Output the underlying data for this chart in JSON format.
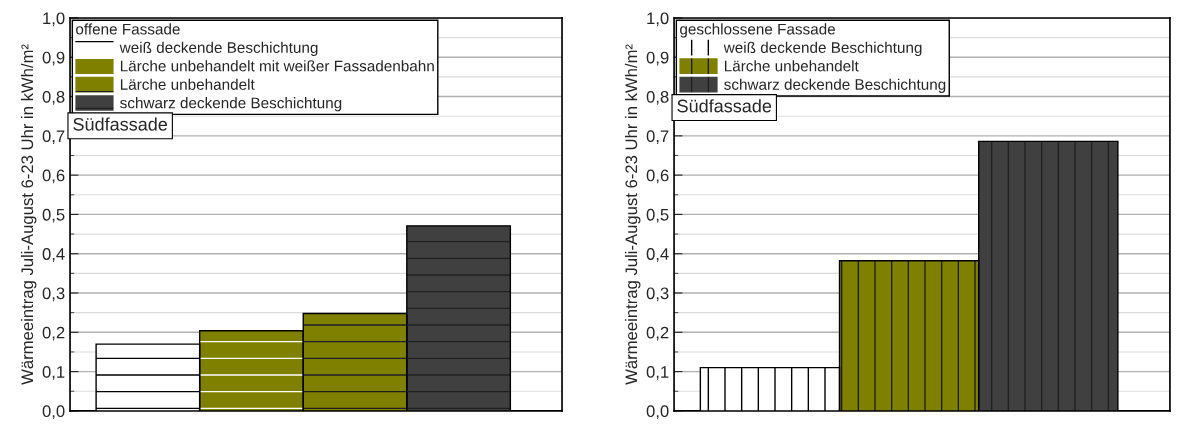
{
  "chart_data": [
    {
      "type": "bar",
      "ylabel": "Wärmeeintrag Juli-August 6-23 Uhr in kWh/m²",
      "legend_title": "offene Fassade",
      "legend": "top left",
      "grid": "y",
      "categories": [
        null,
        null,
        null,
        null
      ],
      "series": [
        {
          "name": "weiß deckende Beschichtung",
          "color": "#ffffff",
          "values": [
            0.17,
            null,
            null,
            null
          ]
        },
        {
          "name": "Lärche unbehandelt mit weißer Fassadenbahn",
          "color": "#808000",
          "values": [
            null,
            0.204,
            null,
            null
          ]
        },
        {
          "name": "Lärche unbehandelt",
          "color": "#808000",
          "values": [
            null,
            null,
            0.248,
            null
          ]
        },
        {
          "name": "schwarz deckende Beschichtung",
          "color": "#404040",
          "values": [
            null,
            null,
            null,
            0.471
          ]
        }
      ],
      "ylim": [
        0,
        1.0
      ],
      "yticks": [
        {
          "value": 0,
          "label": "0,0"
        },
        {
          "value": 0.1,
          "label": "0,1"
        },
        {
          "value": 0.2,
          "label": "0,2"
        },
        {
          "value": 0.3,
          "label": "0,3"
        },
        {
          "value": 0.4,
          "label": "0,4"
        },
        {
          "value": 0.5,
          "label": "0,5"
        },
        {
          "value": 0.6,
          "label": "0,6"
        },
        {
          "value": 0.7,
          "label": "0,7"
        },
        {
          "value": 0.8,
          "label": "0,8"
        },
        {
          "value": 0.9,
          "label": "0,9"
        },
        {
          "value": 1.0,
          "label": "1,0"
        }
      ],
      "annotations": [
        "Südfassade"
      ]
    },
    {
      "type": "bar",
      "ylabel": "Wärmeeintrag Juli-August 6-23 Uhr in kWh/m²",
      "legend_title": "geschlossene Fassade",
      "legend": "top left",
      "grid": "y",
      "categories": [
        null,
        null,
        null
      ],
      "series": [
        {
          "name": "weiß deckende Beschichtung",
          "color": "#ffffff",
          "values": [
            0.11,
            null,
            null
          ]
        },
        {
          "name": "Lärche unbehandelt",
          "color": "#808000",
          "values": [
            null,
            0.382,
            null
          ]
        },
        {
          "name": "schwarz deckende Beschichtung",
          "color": "#404040",
          "values": [
            null,
            null,
            0.686
          ]
        }
      ],
      "ylim": [
        0,
        1.0
      ],
      "yticks": [
        {
          "value": 0,
          "label": "0,0"
        },
        {
          "value": 0.1,
          "label": "0,1"
        },
        {
          "value": 0.2,
          "label": "0,2"
        },
        {
          "value": 0.3,
          "label": "0,3"
        },
        {
          "value": 0.4,
          "label": "0,4"
        },
        {
          "value": 0.5,
          "label": "0,5"
        },
        {
          "value": 0.6,
          "label": "0,6"
        },
        {
          "value": 0.7,
          "label": "0,7"
        },
        {
          "value": 0.8,
          "label": "0,8"
        },
        {
          "value": 0.9,
          "label": "0,9"
        },
        {
          "value": 1.0,
          "label": "1,0"
        }
      ],
      "annotations": [
        "Südfassade"
      ]
    }
  ]
}
